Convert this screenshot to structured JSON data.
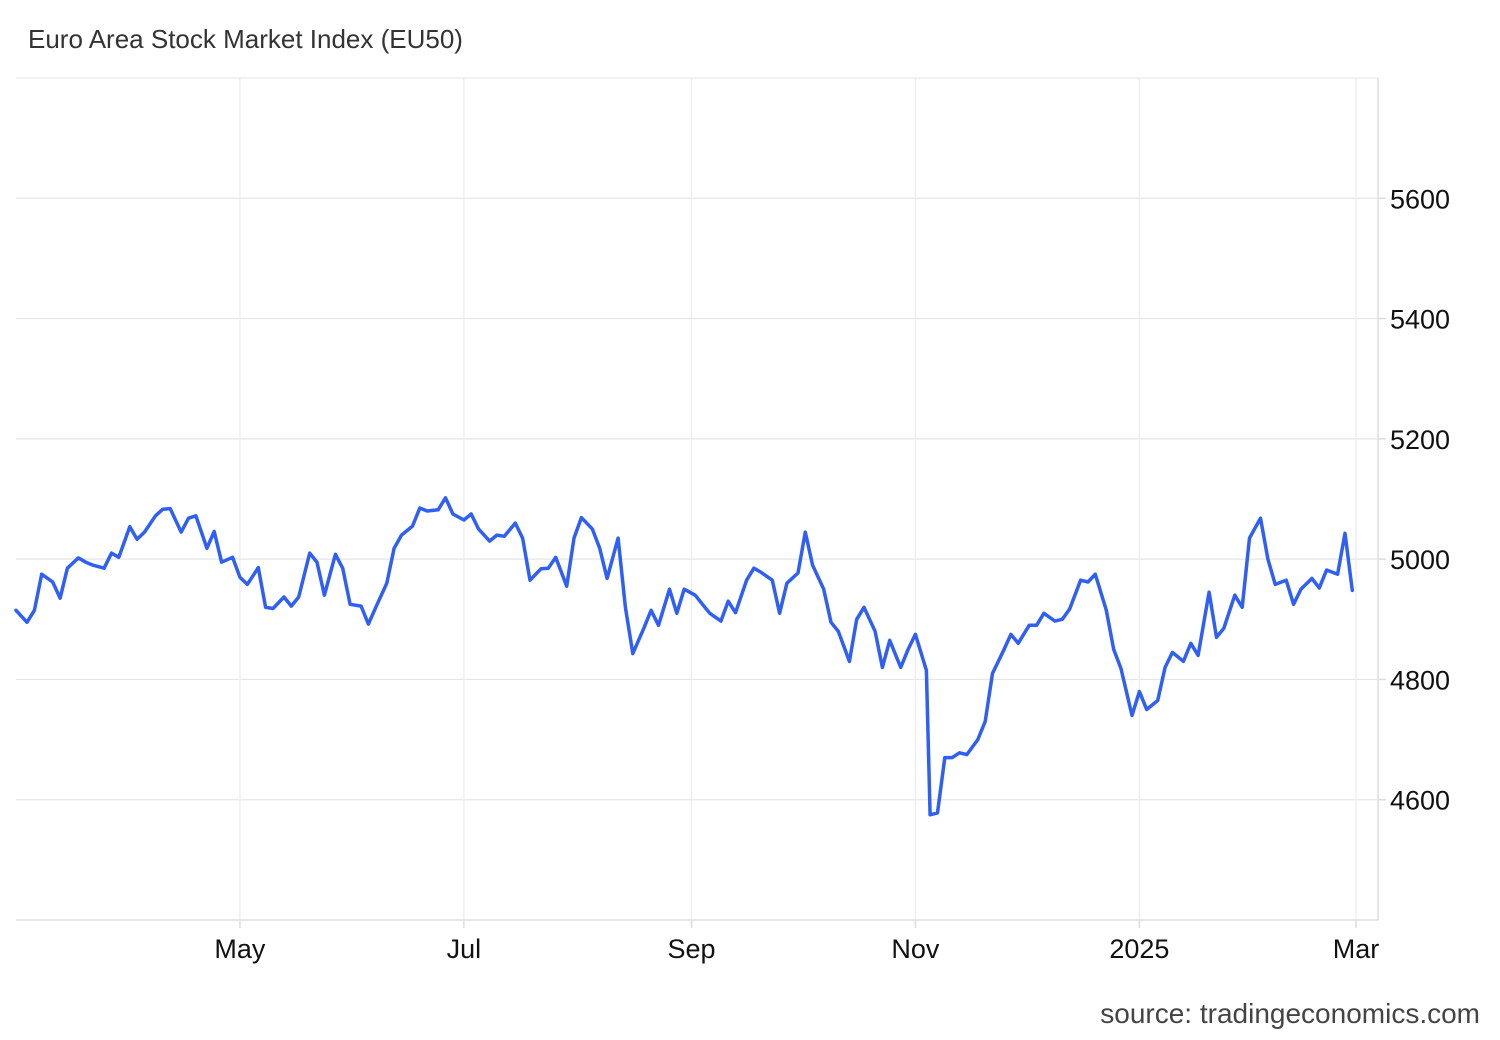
{
  "chart_data": {
    "type": "line",
    "title": "Euro Area Stock Market Index (EU50)",
    "source": "source: tradingeconomics.com",
    "xlabel": "",
    "ylabel": "",
    "ylim": [
      4400,
      5800
    ],
    "y_ticks": [
      4600,
      4800,
      5000,
      5200,
      5400,
      5600
    ],
    "x_range": [
      "2024-03-01",
      "2025-03-07"
    ],
    "x_ticks": [
      {
        "date": "2024-05-01",
        "label": "May"
      },
      {
        "date": "2024-07-01",
        "label": "Jul"
      },
      {
        "date": "2024-09-01",
        "label": "Sep"
      },
      {
        "date": "2024-11-01",
        "label": "Nov"
      },
      {
        "date": "2025-01-01",
        "label": "2025"
      },
      {
        "date": "2025-03-01",
        "label": "Mar"
      }
    ],
    "grid": true,
    "line_color": "#2f5ff5",
    "series": [
      {
        "points": [
          [
            "2024-03-01",
            4915
          ],
          [
            "2024-03-04",
            4895
          ],
          [
            "2024-03-06",
            4915
          ],
          [
            "2024-03-08",
            4975
          ],
          [
            "2024-03-11",
            4962
          ],
          [
            "2024-03-13",
            4935
          ],
          [
            "2024-03-15",
            4985
          ],
          [
            "2024-03-18",
            5002
          ],
          [
            "2024-03-20",
            4995
          ],
          [
            "2024-03-22",
            4990
          ],
          [
            "2024-03-25",
            4985
          ],
          [
            "2024-03-27",
            5010
          ],
          [
            "2024-03-29",
            5003
          ],
          [
            "2024-04-01",
            5054
          ],
          [
            "2024-04-03",
            5033
          ],
          [
            "2024-04-05",
            5045
          ],
          [
            "2024-04-08",
            5072
          ],
          [
            "2024-04-10",
            5083
          ],
          [
            "2024-04-12",
            5084
          ],
          [
            "2024-04-15",
            5045
          ],
          [
            "2024-04-17",
            5068
          ],
          [
            "2024-04-19",
            5072
          ],
          [
            "2024-04-22",
            5018
          ],
          [
            "2024-04-24",
            5046
          ],
          [
            "2024-04-26",
            4995
          ],
          [
            "2024-04-29",
            5003
          ],
          [
            "2024-05-01",
            4970
          ],
          [
            "2024-05-03",
            4958
          ],
          [
            "2024-05-06",
            4986
          ],
          [
            "2024-05-08",
            4920
          ],
          [
            "2024-05-10",
            4918
          ],
          [
            "2024-05-13",
            4937
          ],
          [
            "2024-05-15",
            4922
          ],
          [
            "2024-05-17",
            4937
          ],
          [
            "2024-05-20",
            5010
          ],
          [
            "2024-05-22",
            4995
          ],
          [
            "2024-05-24",
            4940
          ],
          [
            "2024-05-27",
            5008
          ],
          [
            "2024-05-29",
            4985
          ],
          [
            "2024-05-31",
            4925
          ],
          [
            "2024-06-03",
            4922
          ],
          [
            "2024-06-05",
            4892
          ],
          [
            "2024-06-07",
            4920
          ],
          [
            "2024-06-10",
            4960
          ],
          [
            "2024-06-12",
            5018
          ],
          [
            "2024-06-14",
            5040
          ],
          [
            "2024-06-17",
            5055
          ],
          [
            "2024-06-19",
            5085
          ],
          [
            "2024-06-21",
            5080
          ],
          [
            "2024-06-24",
            5082
          ],
          [
            "2024-06-26",
            5102
          ],
          [
            "2024-06-28",
            5075
          ],
          [
            "2024-07-01",
            5065
          ],
          [
            "2024-07-03",
            5075
          ],
          [
            "2024-07-05",
            5050
          ],
          [
            "2024-07-08",
            5030
          ],
          [
            "2024-07-10",
            5040
          ],
          [
            "2024-07-12",
            5038
          ],
          [
            "2024-07-15",
            5060
          ],
          [
            "2024-07-17",
            5035
          ],
          [
            "2024-07-19",
            4965
          ],
          [
            "2024-07-22",
            4984
          ],
          [
            "2024-07-24",
            4985
          ],
          [
            "2024-07-26",
            5003
          ],
          [
            "2024-07-29",
            4955
          ],
          [
            "2024-07-31",
            5035
          ],
          [
            "2024-08-02",
            5069
          ],
          [
            "2024-08-05",
            5050
          ],
          [
            "2024-08-07",
            5018
          ],
          [
            "2024-08-09",
            4968
          ],
          [
            "2024-08-12",
            5035
          ],
          [
            "2024-08-14",
            4920
          ],
          [
            "2024-08-16",
            4843
          ],
          [
            "2024-08-19",
            4885
          ],
          [
            "2024-08-21",
            4915
          ],
          [
            "2024-08-23",
            4890
          ],
          [
            "2024-08-26",
            4950
          ],
          [
            "2024-08-28",
            4910
          ],
          [
            "2024-08-30",
            4950
          ],
          [
            "2024-09-02",
            4940
          ],
          [
            "2024-09-04",
            4925
          ],
          [
            "2024-09-06",
            4910
          ],
          [
            "2024-09-09",
            4897
          ],
          [
            "2024-09-11",
            4930
          ],
          [
            "2024-09-13",
            4911
          ],
          [
            "2024-09-16",
            4965
          ],
          [
            "2024-09-18",
            4985
          ],
          [
            "2024-09-20",
            4978
          ],
          [
            "2024-09-23",
            4965
          ],
          [
            "2024-09-25",
            4910
          ],
          [
            "2024-09-27",
            4960
          ],
          [
            "2024-09-30",
            4977
          ],
          [
            "2024-10-02",
            5045
          ],
          [
            "2024-10-04",
            4990
          ],
          [
            "2024-10-07",
            4950
          ],
          [
            "2024-10-09",
            4895
          ],
          [
            "2024-10-11",
            4880
          ],
          [
            "2024-10-14",
            4830
          ],
          [
            "2024-10-16",
            4900
          ],
          [
            "2024-10-18",
            4920
          ],
          [
            "2024-10-21",
            4880
          ],
          [
            "2024-10-23",
            4820
          ],
          [
            "2024-10-25",
            4865
          ],
          [
            "2024-10-28",
            4820
          ],
          [
            "2024-10-30",
            4850
          ],
          [
            "2024-11-01",
            4875
          ],
          [
            "2024-11-04",
            4815
          ],
          [
            "2024-11-05",
            4575
          ],
          [
            "2024-11-07",
            4578
          ],
          [
            "2024-11-09",
            4670
          ],
          [
            "2024-11-11",
            4670
          ],
          [
            "2024-11-13",
            4678
          ],
          [
            "2024-11-15",
            4675
          ],
          [
            "2024-11-18",
            4700
          ],
          [
            "2024-11-20",
            4730
          ],
          [
            "2024-11-22",
            4810
          ],
          [
            "2024-11-25",
            4848
          ],
          [
            "2024-11-27",
            4875
          ],
          [
            "2024-11-29",
            4860
          ],
          [
            "2024-12-02",
            4890
          ],
          [
            "2024-12-04",
            4890
          ],
          [
            "2024-12-06",
            4910
          ],
          [
            "2024-12-09",
            4897
          ],
          [
            "2024-12-11",
            4900
          ],
          [
            "2024-12-13",
            4917
          ],
          [
            "2024-12-16",
            4965
          ],
          [
            "2024-12-18",
            4962
          ],
          [
            "2024-12-20",
            4975
          ],
          [
            "2024-12-23",
            4915
          ],
          [
            "2024-12-25",
            4850
          ],
          [
            "2024-12-27",
            4818
          ],
          [
            "2024-12-30",
            4740
          ],
          [
            "2025-01-01",
            4780
          ],
          [
            "2025-01-03",
            4750
          ],
          [
            "2025-01-06",
            4765
          ],
          [
            "2025-01-08",
            4820
          ],
          [
            "2025-01-10",
            4845
          ],
          [
            "2025-01-13",
            4830
          ],
          [
            "2025-01-15",
            4860
          ],
          [
            "2025-01-17",
            4840
          ],
          [
            "2025-01-20",
            4945
          ],
          [
            "2025-01-22",
            4870
          ],
          [
            "2025-01-24",
            4885
          ],
          [
            "2025-01-27",
            4940
          ],
          [
            "2025-01-29",
            4920
          ],
          [
            "2025-01-31",
            5035
          ],
          [
            "2025-02-03",
            5068
          ],
          [
            "2025-02-05",
            5000
          ],
          [
            "2025-02-07",
            4958
          ],
          [
            "2025-02-10",
            4965
          ],
          [
            "2025-02-12",
            4925
          ],
          [
            "2025-02-14",
            4950
          ],
          [
            "2025-02-17",
            4968
          ],
          [
            "2025-02-19",
            4952
          ],
          [
            "2025-02-21",
            4982
          ],
          [
            "2025-02-24",
            4975
          ],
          [
            "2025-02-26",
            5043
          ],
          [
            "2025-02-28",
            4948
          ]
        ]
      }
    ]
  }
}
